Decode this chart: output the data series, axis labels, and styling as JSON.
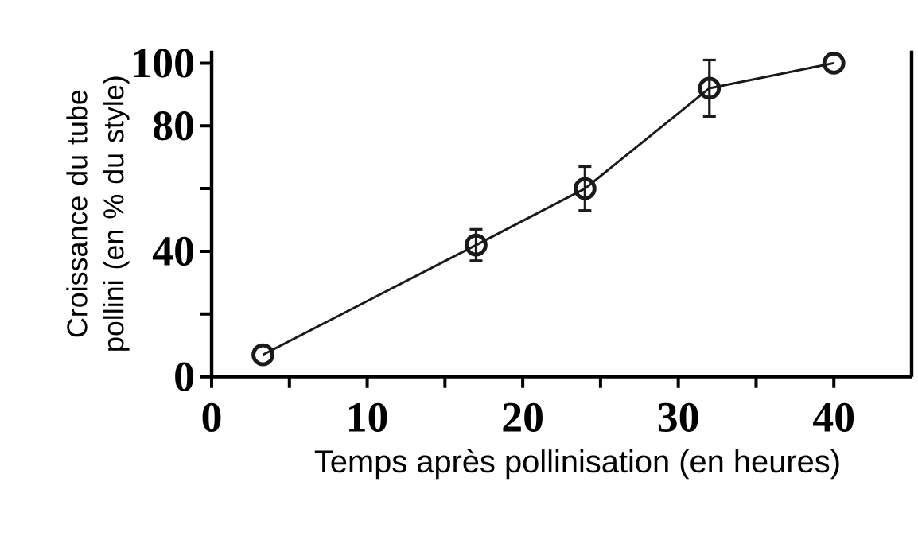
{
  "chart_data": {
    "type": "line",
    "xlabel": "Temps après pollinisation (en heures)",
    "ylabel": "Croissance du tube pollini (en % du style)",
    "x": [
      3.3,
      17,
      24,
      32,
      40
    ],
    "values": [
      7,
      42,
      60,
      92,
      100
    ],
    "errors": [
      null,
      5,
      7,
      9,
      null
    ],
    "color": "#1a1a1a",
    "marker": "circle",
    "line_style": "solid",
    "grid": false,
    "xlim": [
      0,
      45
    ],
    "ylim": [
      0,
      104
    ],
    "xticks": [
      0,
      {
        "value": 5,
        "label": null
      },
      10,
      {
        "value": 15,
        "label": null
      },
      20,
      {
        "value": 25,
        "label": null
      },
      30,
      {
        "value": 35,
        "label": null
      },
      40
    ],
    "yticks": [
      0,
      {
        "value": 20,
        "label": null
      },
      40,
      {
        "value": 60,
        "label": null
      },
      80,
      100
    ]
  }
}
